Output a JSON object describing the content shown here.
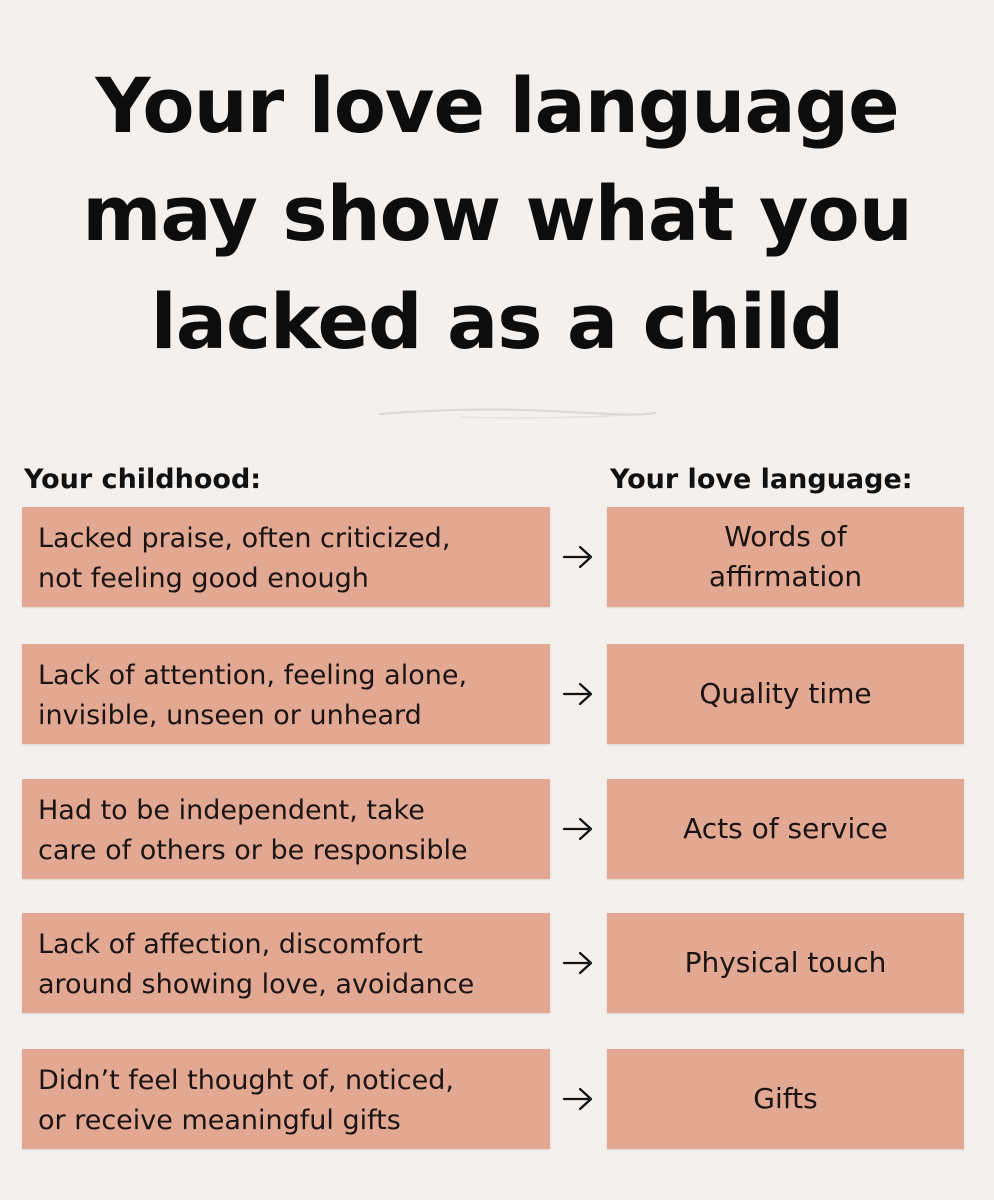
{
  "title": {
    "lines": [
      "Your love language",
      "may show what you",
      "lacked as a child"
    ]
  },
  "headers": {
    "left": "Your childhood:",
    "right": "Your love language:"
  },
  "rows": [
    {
      "childhood": "Lacked praise, often criticized,\nnot feeling good enough",
      "love_language": "Words of\naffirmation"
    },
    {
      "childhood": "Lack of attention, feeling alone,\ninvisible, unseen or unheard",
      "love_language": "Quality time"
    },
    {
      "childhood": "Had to be independent, take\ncare of others or be responsible",
      "love_language": "Acts of service"
    },
    {
      "childhood": "Lack of affection, discomfort\naround showing love, avoidance",
      "love_language": "Physical touch"
    },
    {
      "childhood": "Didn’t feel thought of, noticed,\nor receive meaningful gifts",
      "love_language": "Gifts"
    }
  ],
  "colors": {
    "background": "#f3f0ee",
    "box": "#e3a892",
    "text": "#111111"
  },
  "icons": {
    "arrow": "arrow-right-icon",
    "divider": "scribble-divider"
  }
}
